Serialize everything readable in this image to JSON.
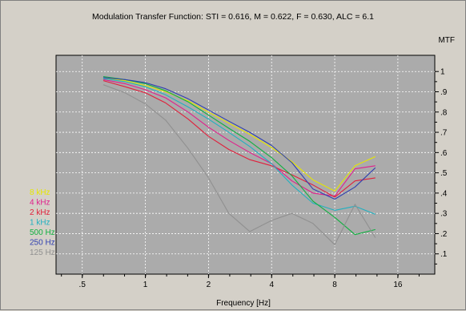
{
  "chart_data": {
    "type": "line",
    "title": "Modulation Transfer Function: STI = 0.616, M = 0.622, F = 0.630, ALC =   6.1",
    "xlabel": "Frequency [Hz]",
    "ylabel": "MTF",
    "x_scale": "log2",
    "xlim": [
      0.375,
      24
    ],
    "ylim": [
      0,
      1.08
    ],
    "x_ticks": [
      0.5,
      1,
      2,
      4,
      8,
      16
    ],
    "x_tick_labels": [
      ".5",
      "1",
      "2",
      "4",
      "8",
      "16"
    ],
    "y_ticks": [
      0.1,
      0.2,
      0.3,
      0.4,
      0.5,
      0.6,
      0.7,
      0.8,
      0.9,
      1.0
    ],
    "y_tick_labels": [
      ".1",
      ".2",
      ".3",
      ".4",
      ".5",
      ".6",
      ".7",
      ".8",
      ".9",
      "1"
    ],
    "grid": true,
    "legend_position": "left",
    "x": [
      0.63,
      0.8,
      1.0,
      1.25,
      1.6,
      2.0,
      2.5,
      3.15,
      4.0,
      5.0,
      6.3,
      8.0,
      10.0,
      12.5
    ],
    "series": [
      {
        "name": "8 kHz",
        "color": "#e6e600",
        "values": [
          0.97,
          0.955,
          0.93,
          0.9,
          0.855,
          0.8,
          0.745,
          0.69,
          0.625,
          0.555,
          0.465,
          0.41,
          0.535,
          0.58
        ]
      },
      {
        "name": "4 kHz",
        "color": "#e0208c",
        "values": [
          0.96,
          0.94,
          0.91,
          0.87,
          0.8,
          0.725,
          0.66,
          0.6,
          0.545,
          0.46,
          0.4,
          0.385,
          0.52,
          0.535
        ]
      },
      {
        "name": "2 kHz",
        "color": "#e0203c",
        "values": [
          0.955,
          0.925,
          0.895,
          0.845,
          0.765,
          0.68,
          0.615,
          0.565,
          0.535,
          0.49,
          0.44,
          0.38,
          0.46,
          0.475
        ]
      },
      {
        "name": "1 kHz",
        "color": "#20b0c0",
        "values": [
          0.965,
          0.95,
          0.925,
          0.885,
          0.825,
          0.765,
          0.7,
          0.63,
          0.545,
          0.44,
          0.35,
          0.315,
          0.335,
          0.295
        ]
      },
      {
        "name": "500 Hz",
        "color": "#10b040",
        "values": [
          0.975,
          0.96,
          0.94,
          0.905,
          0.85,
          0.785,
          0.72,
          0.655,
          0.575,
          0.485,
          0.36,
          0.28,
          0.195,
          0.22
        ]
      },
      {
        "name": "250 Hz",
        "color": "#3040b0",
        "values": [
          0.97,
          0.96,
          0.945,
          0.915,
          0.865,
          0.81,
          0.755,
          0.7,
          0.635,
          0.55,
          0.42,
          0.37,
          0.43,
          0.525
        ]
      },
      {
        "name": "125 Hz",
        "color": "#909090",
        "values": [
          0.935,
          0.895,
          0.84,
          0.76,
          0.62,
          0.475,
          0.3,
          0.21,
          0.265,
          0.3,
          0.25,
          0.145,
          0.345,
          0.18
        ]
      }
    ]
  }
}
